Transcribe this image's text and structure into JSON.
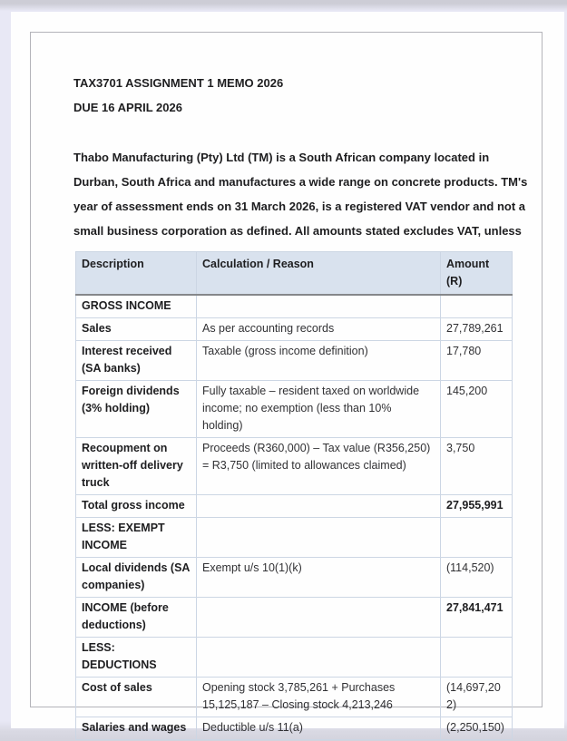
{
  "document": {
    "title_lines": [
      "TAX3701 ASSIGNMENT 1 MEMO 2026",
      "DUE 16 APRIL 2026"
    ],
    "intro_lines": [
      "Thabo Manufacturing (Pty) Ltd (TM) is a South African company located in",
      "Durban, South Africa and manufactures a wide range on concrete products. TM's",
      "year of assessment ends on 31 March 2026, is a registered VAT vendor and not a",
      "small business corporation as defined. All amounts stated excludes VAT, unless"
    ]
  },
  "table": {
    "headers": [
      "Description",
      "Calculation / Reason",
      "Amount (R)"
    ],
    "rows": [
      {
        "type": "section",
        "desc": "GROSS INCOME",
        "calc": "",
        "amount": ""
      },
      {
        "type": "item",
        "desc": "Sales",
        "calc": "As per accounting records",
        "amount": "27,789,261"
      },
      {
        "type": "item",
        "desc": "Interest received (SA banks)",
        "calc": "Taxable (gross income definition)",
        "amount": "17,780"
      },
      {
        "type": "item",
        "desc": "Foreign dividends (3% holding)",
        "calc": "Fully taxable – resident taxed on worldwide income; no exemption (less than 10% holding)",
        "amount": "145,200"
      },
      {
        "type": "item",
        "desc": "Recoupment on written-off delivery truck",
        "calc": "Proceeds (R360,000) – Tax value (R356,250) = R3,750 (limited to allowances claimed)",
        "amount": "3,750"
      },
      {
        "type": "total",
        "desc": "Total gross income",
        "calc": "",
        "amount": "27,955,991"
      },
      {
        "type": "section",
        "desc": "LESS: EXEMPT INCOME",
        "calc": "",
        "amount": ""
      },
      {
        "type": "item",
        "desc": "Local dividends (SA companies)",
        "calc": "Exempt u/s 10(1)(k)",
        "amount": "(114,520)"
      },
      {
        "type": "total",
        "desc": "INCOME (before deductions)",
        "calc": "",
        "amount": "27,841,471"
      },
      {
        "type": "section",
        "desc": "LESS: DEDUCTIONS",
        "calc": "",
        "amount": ""
      },
      {
        "type": "item",
        "desc": "Cost of sales",
        "calc": "Opening stock 3,785,261 + Purchases 15,125,187 – Closing stock 4,213,246",
        "amount": "(14,697,202)"
      },
      {
        "type": "item",
        "desc": "Salaries and wages",
        "calc": "Deductible u/s 11(a)",
        "amount": "(2,250,150)"
      }
    ]
  },
  "colors": {
    "canvas_background": "#e8e8f5",
    "page_background": "#fefefe",
    "frame_border": "#b4b4ba",
    "table_header_background": "#d9e2ee",
    "table_border": "#ccd6e4",
    "header_underline": "#85878a",
    "text": "#1e1e20"
  }
}
